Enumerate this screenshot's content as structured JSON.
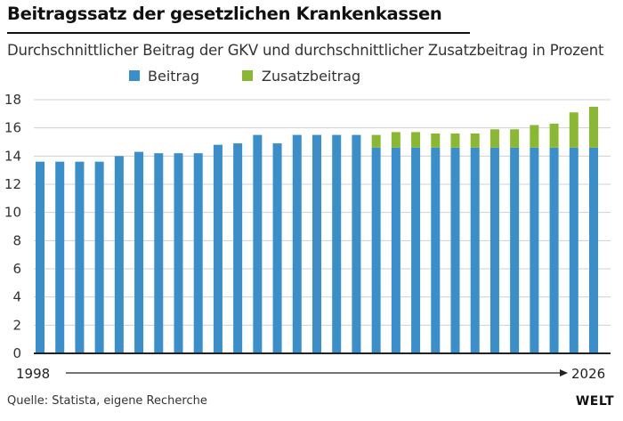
{
  "header": {
    "title": "Beitragssatz der gesetzlichen Krankenkassen",
    "subtitle": "Durchschnittlicher Beitrag der GKV und durchschnittlicher Zusatzbeitrag in Prozent"
  },
  "footer": {
    "source": "Quelle: Statista, eigene Recherche",
    "logo": "WELT"
  },
  "chart_data": {
    "type": "bar",
    "stacked": true,
    "x_start_label": "1998",
    "x_end_label": "2026",
    "categories": [
      "1998",
      "1999",
      "2000",
      "2001",
      "2002",
      "2003",
      "2004",
      "2005",
      "2006",
      "2007",
      "2008",
      "2009",
      "2010",
      "2011",
      "2012",
      "2013",
      "2014",
      "2015",
      "2016",
      "2017",
      "2018",
      "2019",
      "2020",
      "2021",
      "2022",
      "2023",
      "2024",
      "2025",
      "2026"
    ],
    "series": [
      {
        "name": "Beitrag",
        "color": "#3a8fcb",
        "values": [
          13.6,
          13.6,
          13.6,
          13.6,
          14.0,
          14.3,
          14.2,
          14.2,
          14.2,
          14.8,
          14.9,
          15.5,
          14.9,
          15.5,
          15.5,
          15.5,
          15.5,
          14.6,
          14.6,
          14.6,
          14.6,
          14.6,
          14.6,
          14.6,
          14.6,
          14.6,
          14.6,
          14.6,
          14.6
        ]
      },
      {
        "name": "Zusatzbeitrag",
        "color": "#8bb832",
        "values": [
          0,
          0,
          0,
          0,
          0,
          0,
          0,
          0,
          0,
          0,
          0,
          0,
          0,
          0,
          0,
          0,
          0,
          0.9,
          1.1,
          1.1,
          1.0,
          1.0,
          1.0,
          1.3,
          1.3,
          1.6,
          1.7,
          2.5,
          2.9
        ]
      }
    ],
    "ylim": [
      0,
      18
    ],
    "yticks": [
      0,
      2,
      4,
      6,
      8,
      10,
      12,
      14,
      16,
      18
    ],
    "grid": true,
    "legend_position": "top-left"
  }
}
